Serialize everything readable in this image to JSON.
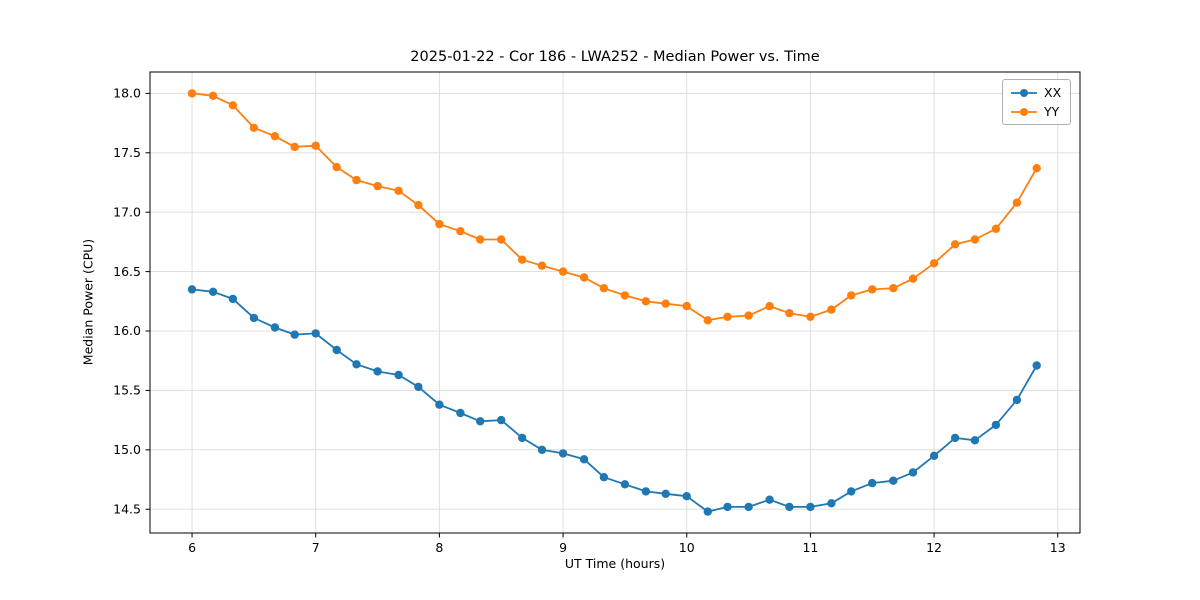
{
  "chart_data": {
    "type": "line",
    "title": "2025-01-22 - Cor 186 - LWA252 - Median Power vs. Time",
    "xlabel": "UT Time (hours)",
    "ylabel": "Median Power (CPU)",
    "xlim": [
      5.66,
      13.18
    ],
    "ylim": [
      14.3,
      18.18
    ],
    "xticks": [
      6,
      7,
      8,
      9,
      10,
      11,
      12,
      13
    ],
    "xticklabels": [
      "6",
      "7",
      "8",
      "9",
      "10",
      "11",
      "12",
      "13"
    ],
    "yticks": [
      14.5,
      15.0,
      15.5,
      16.0,
      16.5,
      17.0,
      17.5,
      18.0
    ],
    "yticklabels": [
      "14.5",
      "15.0",
      "15.5",
      "16.0",
      "16.5",
      "17.0",
      "17.5",
      "18.0"
    ],
    "grid": true,
    "grid_color": "#dcdcdc",
    "legend_position": "upper right",
    "x": [
      6.0,
      6.17,
      6.33,
      6.5,
      6.67,
      6.83,
      7.0,
      7.17,
      7.33,
      7.5,
      7.67,
      7.83,
      8.0,
      8.17,
      8.33,
      8.5,
      8.67,
      8.83,
      9.0,
      9.17,
      9.33,
      9.5,
      9.67,
      9.83,
      10.0,
      10.17,
      10.33,
      10.5,
      10.67,
      10.83,
      11.0,
      11.17,
      11.33,
      11.5,
      11.67,
      11.83,
      12.0,
      12.17,
      12.33,
      12.5,
      12.67,
      12.83
    ],
    "series": [
      {
        "name": "XX",
        "color": "#1f77b4",
        "values": [
          16.35,
          16.33,
          16.27,
          16.11,
          16.03,
          15.97,
          15.98,
          15.84,
          15.72,
          15.66,
          15.63,
          15.53,
          15.38,
          15.31,
          15.24,
          15.25,
          15.1,
          15.0,
          14.97,
          14.92,
          14.77,
          14.71,
          14.65,
          14.63,
          14.61,
          14.48,
          14.52,
          14.52,
          14.58,
          14.52,
          14.52,
          14.55,
          14.65,
          14.72,
          14.74,
          14.81,
          14.95,
          15.1,
          15.08,
          15.21,
          15.42,
          15.71
        ]
      },
      {
        "name": "YY",
        "color": "#ff7f0e",
        "values": [
          18.0,
          17.98,
          17.9,
          17.71,
          17.64,
          17.55,
          17.56,
          17.38,
          17.27,
          17.22,
          17.18,
          17.06,
          16.9,
          16.84,
          16.77,
          16.77,
          16.6,
          16.55,
          16.5,
          16.45,
          16.36,
          16.3,
          16.25,
          16.23,
          16.21,
          16.09,
          16.12,
          16.13,
          16.21,
          16.15,
          16.12,
          16.18,
          16.3,
          16.35,
          16.36,
          16.44,
          16.57,
          16.73,
          16.77,
          16.86,
          17.08,
          17.37
        ]
      }
    ]
  }
}
